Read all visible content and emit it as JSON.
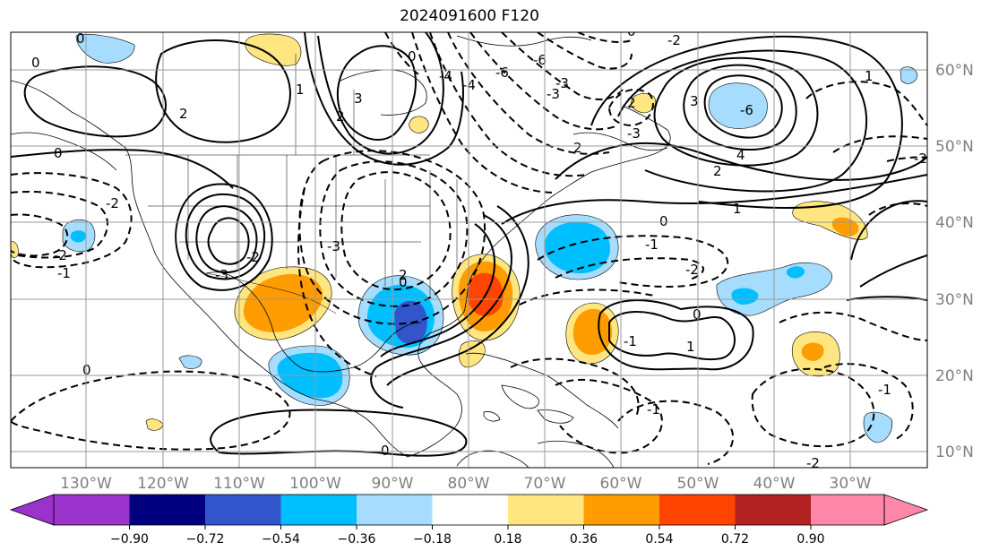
{
  "title": "2024091600 F120",
  "lon_labels": [
    "130°W",
    "120°W",
    "110°W",
    "100°W",
    "90°W",
    "80°W",
    "70°W",
    "60°W",
    "50°W",
    "40°W",
    "30°W"
  ],
  "lat_labels": [
    "60°N",
    "50°N",
    "40°N",
    "30°N",
    "20°N",
    "10°N"
  ],
  "colorbar": {
    "ticks": [
      "−0.90",
      "−0.72",
      "−0.54",
      "−0.36",
      "−0.18",
      "0.18",
      "0.36",
      "0.54",
      "0.72",
      "0.90"
    ],
    "colors": [
      "#9a33cc",
      "#00007f",
      "#3355cc",
      "#00bfff",
      "#a6ddff",
      "#ffffff",
      "#ffe680",
      "#ff9c00",
      "#ff4400",
      "#b22222",
      "#ff88aa"
    ],
    "under_color": "#9a33cc",
    "over_color": "#ff88aa"
  },
  "contour_labels": [
    "0",
    "0",
    "2",
    "0",
    "-2",
    "-1",
    "-2",
    "0",
    "-3",
    "-2",
    "3",
    "2",
    "-3",
    "2",
    "-6",
    "-2",
    "3",
    "-6",
    "4",
    "2",
    "1",
    "-2",
    "0",
    "-1",
    "-2",
    "0",
    "1",
    "-1",
    "-1",
    "0",
    "0",
    "-1",
    "2",
    "-3",
    "2",
    "-4",
    "1",
    "-2",
    "1",
    "-4",
    "-3",
    "0",
    "-6",
    "-3",
    "0"
  ],
  "anomaly_blobs": [
    {
      "name": "blob-gulf-mexico-negative",
      "level": -0.72
    },
    {
      "name": "blob-mexico-positive",
      "level": 0.54
    },
    {
      "name": "blob-florida-positive",
      "level": 0.72
    },
    {
      "name": "blob-north-atlantic-negative",
      "level": -0.36
    },
    {
      "name": "blob-west-atlantic-positive",
      "level": 0.54
    },
    {
      "name": "blob-mexico-south-negative",
      "level": -0.36
    },
    {
      "name": "blob-central-atlantic-positive",
      "level": 0.54
    },
    {
      "name": "blob-east-atlantic-negative",
      "level": -0.36
    },
    {
      "name": "blob-labrador-negative",
      "level": -0.36
    }
  ]
}
